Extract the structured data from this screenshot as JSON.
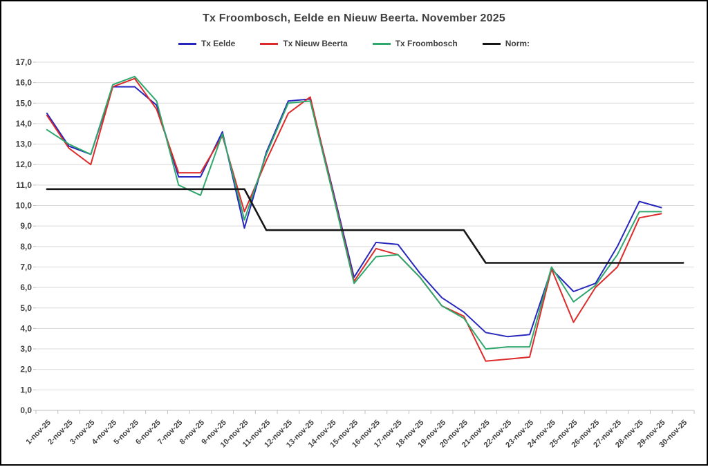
{
  "chart": {
    "title": "Tx Froombosch, Eelde en Nieuw Beerta. November 2025"
  },
  "chart_data": {
    "type": "line",
    "title": "Tx Froombosch, Eelde en Nieuw Beerta. November 2025",
    "legend_position": "top",
    "grid": true,
    "decimal_separator": ",",
    "ylim": [
      0,
      17
    ],
    "ytick_step": 1,
    "x_categories": [
      "1-nov-25",
      "2-nov-25",
      "3-nov-25",
      "4-nov-25",
      "5-nov-25",
      "6-nov-25",
      "7-nov-25",
      "8-nov-25",
      "9-nov-25",
      "10-nov-25",
      "11-nov-25",
      "12-nov-25",
      "13-nov-25",
      "14-nov-25",
      "15-nov-25",
      "16-nov-25",
      "17-nov-25",
      "18-nov-25",
      "19-nov-25",
      "20-nov-25",
      "21-nov-25",
      "22-nov-25",
      "23-nov-25",
      "24-nov-25",
      "25-nov-25",
      "26-nov-25",
      "27-nov-25",
      "28-nov-25",
      "29-nov-25",
      "30-nov-25"
    ],
    "series": [
      {
        "name": "Tx Eelde",
        "color": "#2727be",
        "values": [
          14.5,
          12.9,
          12.5,
          15.8,
          15.8,
          14.9,
          11.4,
          11.4,
          13.6,
          8.9,
          12.6,
          15.1,
          15.2,
          10.9,
          6.5,
          8.2,
          8.1,
          6.7,
          5.5,
          4.8,
          3.8,
          3.6,
          3.7,
          6.9,
          5.8,
          6.2,
          8.0,
          10.2,
          9.9
        ]
      },
      {
        "name": "Tx Nieuw Beerta",
        "color": "#dd2a2a",
        "values": [
          14.4,
          12.8,
          12.0,
          15.8,
          16.2,
          14.7,
          11.6,
          11.6,
          13.4,
          9.7,
          12.2,
          14.5,
          15.3,
          10.8,
          6.3,
          7.9,
          7.6,
          6.5,
          5.1,
          4.6,
          2.4,
          2.5,
          2.6,
          6.9,
          4.3,
          6.0,
          7.0,
          9.4,
          9.6
        ]
      },
      {
        "name": "Tx Froombosch",
        "color": "#2ea76c",
        "values": [
          13.7,
          13.0,
          12.5,
          15.9,
          16.3,
          15.1,
          11.0,
          10.5,
          13.5,
          9.3,
          12.5,
          15.0,
          15.1,
          10.7,
          6.2,
          7.5,
          7.6,
          6.5,
          5.1,
          4.5,
          3.0,
          3.1,
          3.1,
          7.0,
          5.3,
          6.1,
          7.6,
          9.7,
          9.7
        ]
      },
      {
        "name": "Norm:",
        "color": "#161616",
        "values": [
          10.8,
          10.8,
          10.8,
          10.8,
          10.8,
          10.8,
          10.8,
          10.8,
          10.8,
          10.8,
          8.8,
          8.8,
          8.8,
          8.8,
          8.8,
          8.8,
          8.8,
          8.8,
          8.8,
          8.8,
          7.2,
          7.2,
          7.2,
          7.2,
          7.2,
          7.2,
          7.2,
          7.2,
          7.2,
          7.2
        ]
      }
    ]
  }
}
